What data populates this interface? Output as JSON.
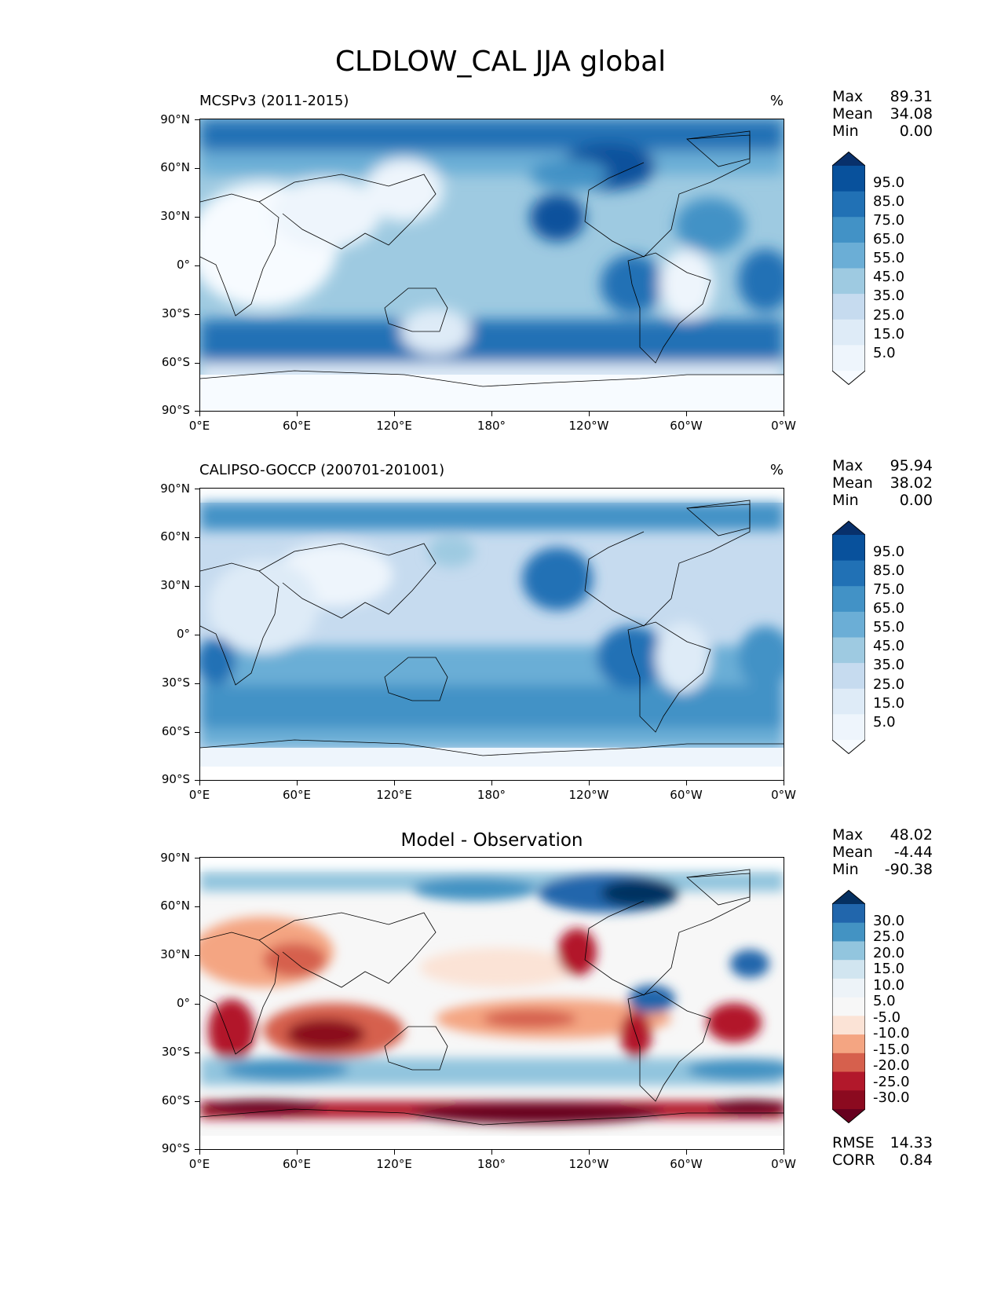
{
  "title": "CLDLOW_CAL JJA global",
  "x_ticks": [
    "0°E",
    "60°E",
    "120°E",
    "180°",
    "120°W",
    "60°W",
    "0°W"
  ],
  "y_ticks": [
    "90°N",
    "60°N",
    "30°N",
    "0°",
    "30°S",
    "60°S",
    "90°S"
  ],
  "panels": [
    {
      "id": "model",
      "subtitle": "MCSPv3 (2011-2015)",
      "units": "%",
      "stats": [
        {
          "label": "Max",
          "value": "89.31"
        },
        {
          "label": "Mean",
          "value": "34.08"
        },
        {
          "label": "Min",
          "value": "0.00"
        }
      ],
      "colorbar": {
        "labels": [
          "95.0",
          "85.0",
          "75.0",
          "65.0",
          "55.0",
          "45.0",
          "35.0",
          "25.0",
          "15.0",
          "5.0"
        ],
        "colors": [
          "#08306b",
          "#08519c",
          "#2171b5",
          "#4292c6",
          "#6baed6",
          "#9ecae1",
          "#c6dbef",
          "#deebf7",
          "#eef5fc",
          "#f7fbff"
        ]
      }
    },
    {
      "id": "obs",
      "subtitle": "CALIPSO-GOCCP (200701-201001)",
      "units": "%",
      "stats": [
        {
          "label": "Max",
          "value": "95.94"
        },
        {
          "label": "Mean",
          "value": "38.02"
        },
        {
          "label": "Min",
          "value": "0.00"
        }
      ],
      "colorbar": {
        "labels": [
          "95.0",
          "85.0",
          "75.0",
          "65.0",
          "55.0",
          "45.0",
          "35.0",
          "25.0",
          "15.0",
          "5.0"
        ],
        "colors": [
          "#08306b",
          "#08519c",
          "#2171b5",
          "#4292c6",
          "#6baed6",
          "#9ecae1",
          "#c6dbef",
          "#deebf7",
          "#eef5fc",
          "#f7fbff"
        ]
      }
    },
    {
      "id": "diff",
      "subtitle": "Model - Observation",
      "units": "",
      "stats": [
        {
          "label": "Max",
          "value": "48.02"
        },
        {
          "label": "Mean",
          "value": "-4.44"
        },
        {
          "label": "Min",
          "value": "-90.38"
        }
      ],
      "colorbar": {
        "labels": [
          "30.0",
          "25.0",
          "20.0",
          "15.0",
          "10.0",
          "5.0",
          "-5.0",
          "-10.0",
          "-15.0",
          "-20.0",
          "-25.0",
          "-30.0"
        ],
        "colors": [
          "#053061",
          "#2166ac",
          "#4393c3",
          "#92c5de",
          "#d1e5f0",
          "#edf3f8",
          "#f7f7f7",
          "#fbe3d6",
          "#f4a582",
          "#d6604d",
          "#b2182b",
          "#8b0a1f",
          "#67001f"
        ]
      },
      "footer": [
        {
          "label": "RMSE",
          "value": "14.33"
        },
        {
          "label": "CORR",
          "value": "0.84"
        }
      ]
    }
  ],
  "map_data": {
    "projection": "PlateCarree centered 180°",
    "extent": {
      "lon": [
        0,
        360
      ],
      "lat": [
        -90,
        90
      ]
    },
    "fields": [
      {
        "panel": "model",
        "features": [
          "stratocumulus maxima off California, Peru, Namibia, Canary",
          "high cloud cover Southern Ocean 40-60°S",
          "high cloud cover Arctic",
          "clear over Antarctica, Sahara, Arabia"
        ]
      },
      {
        "panel": "obs",
        "features": [
          "stratocumulus maxima off California and Peru",
          "broad moderate coverage Southern Hemisphere oceans",
          "data limited to 82°S-82°N"
        ]
      },
      {
        "panel": "diff",
        "features": [
          "positive bias Arctic/Siberia and off Peru",
          "strong negative bias near Antarctic coast",
          "negative bias tropical Indian Ocean and off California/Namibia"
        ]
      }
    ]
  }
}
